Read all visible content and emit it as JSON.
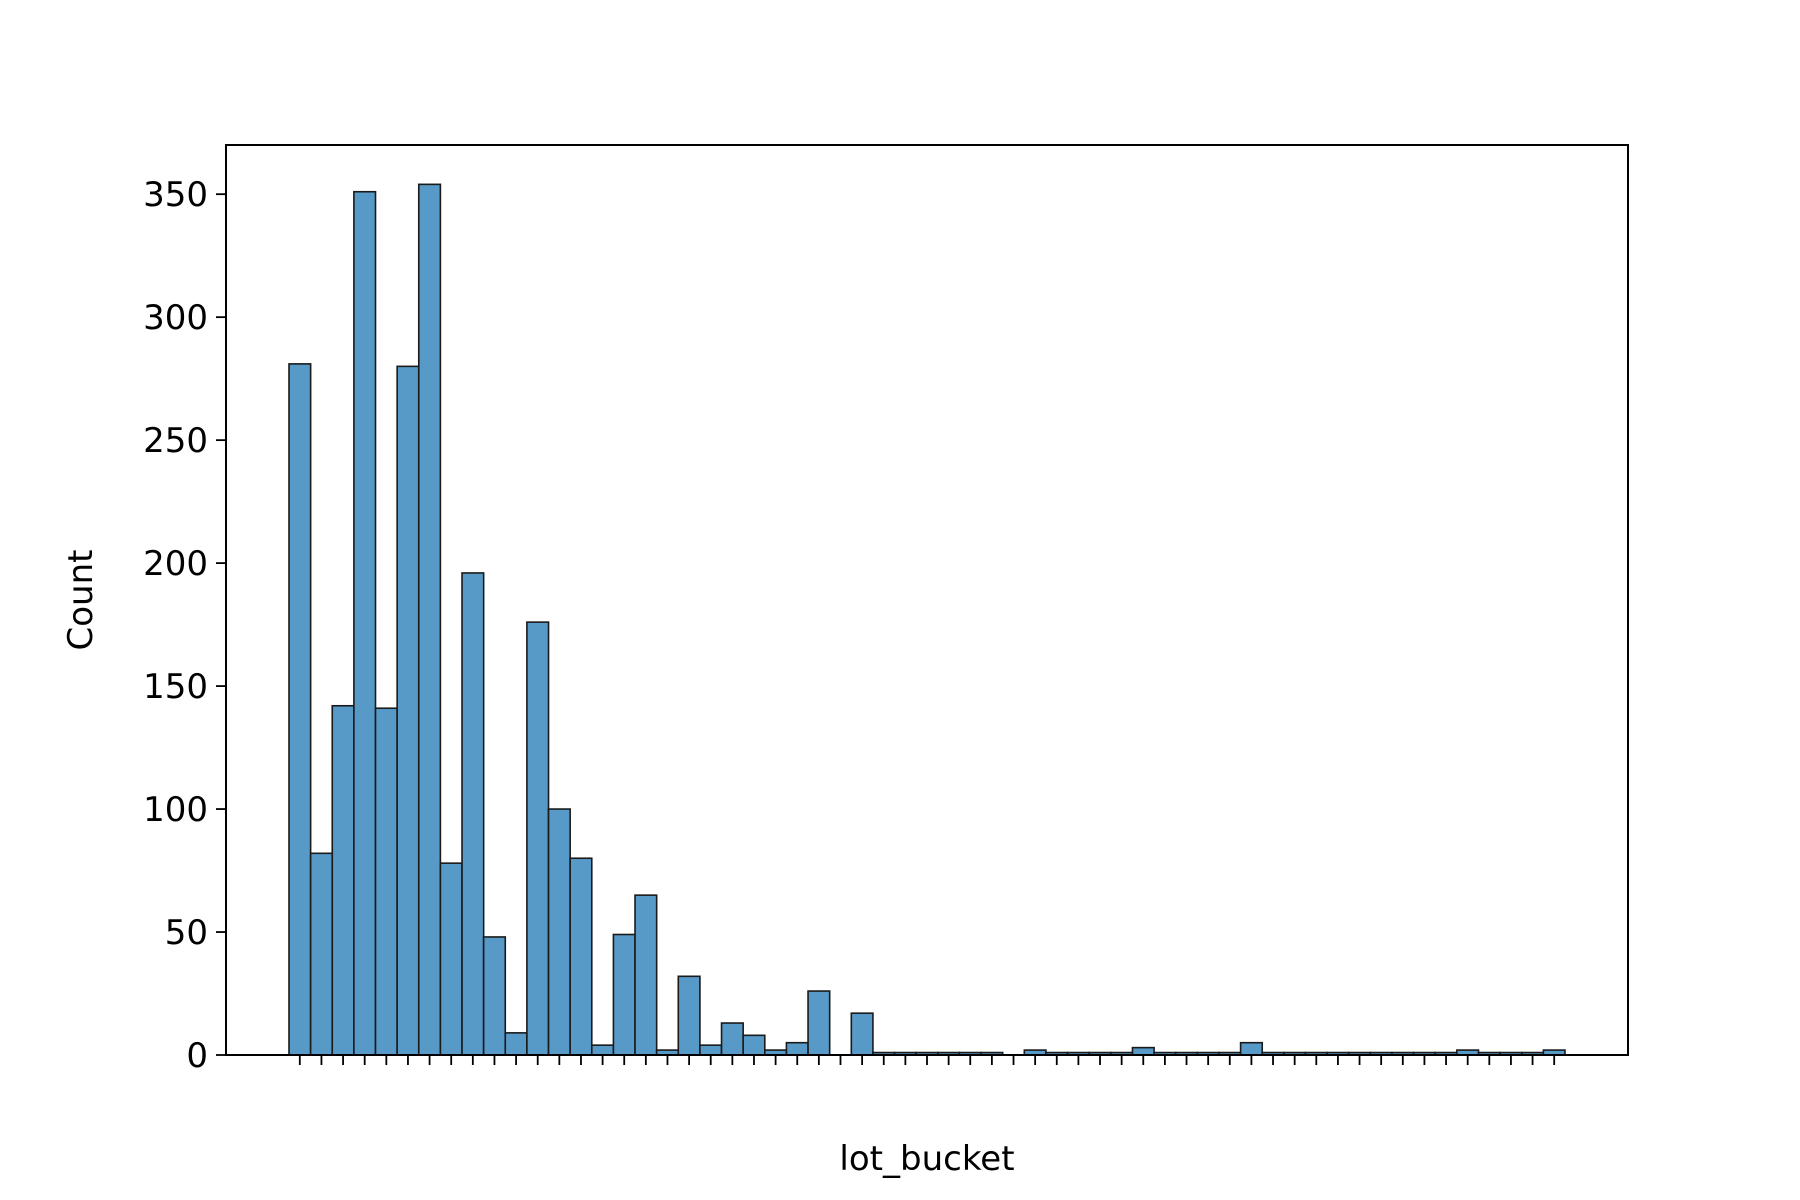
{
  "chart_data": {
    "type": "bar",
    "title": "",
    "xlabel": "lot_bucket",
    "ylabel": "Count",
    "ylim": [
      0,
      370
    ],
    "yticks": [
      0,
      50,
      100,
      150,
      200,
      250,
      300,
      350
    ],
    "grid": false,
    "bar_color": "#5799c7",
    "edge_color": "#1a1a1a",
    "values": [
      281,
      82,
      142,
      351,
      141,
      280,
      354,
      78,
      196,
      48,
      9,
      176,
      100,
      80,
      4,
      49,
      65,
      2,
      32,
      4,
      13,
      8,
      2,
      5,
      26,
      0,
      17,
      1,
      1,
      1,
      1,
      1,
      1,
      0,
      2,
      1,
      1,
      1,
      1,
      3,
      1,
      1,
      1,
      1,
      5,
      1,
      1,
      1,
      1,
      1,
      1,
      1,
      1,
      1,
      2,
      1,
      1,
      1,
      2
    ]
  }
}
